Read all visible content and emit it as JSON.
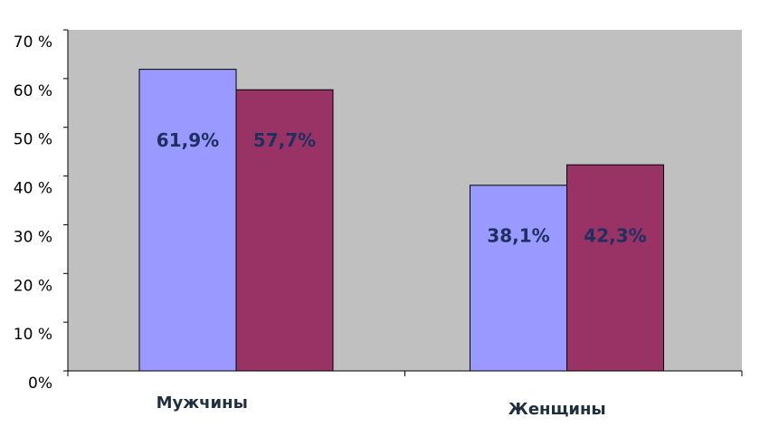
{
  "chart_data": {
    "type": "bar",
    "categories": [
      "Мужчины",
      "Женщины"
    ],
    "series": [
      {
        "color": "#9999ff",
        "values": [
          61.9,
          38.1
        ],
        "value_labels": [
          "61,9%",
          "38,1%"
        ]
      },
      {
        "color": "#993366",
        "values": [
          57.7,
          42.3
        ],
        "value_labels": [
          "57,7%",
          "42,3%"
        ]
      }
    ],
    "ylim": [
      0,
      70
    ],
    "yticks": [
      {
        "value": 0,
        "label": "0%"
      },
      {
        "value": 10,
        "label": "10 %"
      },
      {
        "value": 20,
        "label": "20 %"
      },
      {
        "value": 30,
        "label": "30 %"
      },
      {
        "value": 40,
        "label": "40 %"
      },
      {
        "value": 50,
        "label": "50 %"
      },
      {
        "value": 60,
        "label": "60 %"
      },
      {
        "value": 70,
        "label": "70 %"
      }
    ],
    "plot_background": "#c0c0c0"
  }
}
